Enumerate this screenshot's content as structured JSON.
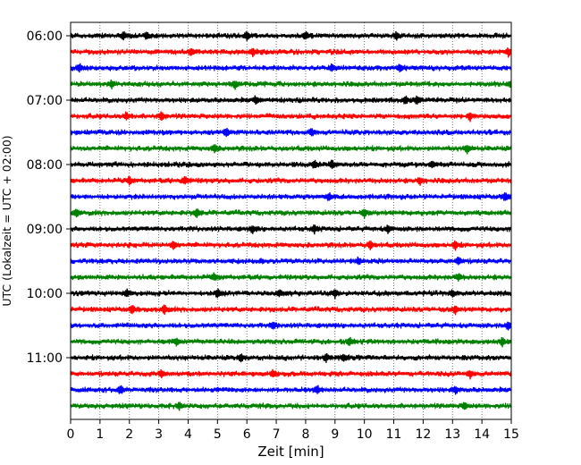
{
  "chart_data": {
    "type": "line",
    "title": "",
    "xlabel": "Zeit  [min]",
    "ylabel": "UTC (Lokalzeit = UTC + 02:00)",
    "xlim": [
      0,
      15
    ],
    "x_ticks": [
      "0",
      "1",
      "2",
      "3",
      "4",
      "5",
      "6",
      "7",
      "8",
      "9",
      "10",
      "11",
      "12",
      "13",
      "14",
      "15"
    ],
    "y_ticks": [
      "06:00",
      "07:00",
      "08:00",
      "09:00",
      "10:00",
      "11:00"
    ],
    "trace_interval_min": 15,
    "grid": "vertical-dotted",
    "colors": [
      "#000000",
      "#ff0000",
      "#0000ff",
      "#008000"
    ],
    "series": [
      {
        "name": "06:00",
        "color": "#000000",
        "events": [
          1.8,
          2.6,
          6.0,
          8.0,
          11.1
        ]
      },
      {
        "name": "06:15",
        "color": "#ff0000",
        "events": [
          4.1,
          6.2,
          14.9
        ]
      },
      {
        "name": "06:30",
        "color": "#0000ff",
        "events": [
          0.3,
          8.9,
          11.2
        ]
      },
      {
        "name": "06:45",
        "color": "#008000",
        "events": [
          1.4,
          5.6,
          15.0
        ]
      },
      {
        "name": "07:00",
        "color": "#000000",
        "events": [
          6.3,
          11.4,
          11.8
        ]
      },
      {
        "name": "07:15",
        "color": "#ff0000",
        "events": [
          1.9,
          3.1,
          13.6
        ]
      },
      {
        "name": "07:30",
        "color": "#0000ff",
        "events": [
          5.3,
          8.2
        ]
      },
      {
        "name": "07:45",
        "color": "#008000",
        "events": [
          4.9,
          13.5
        ]
      },
      {
        "name": "08:00",
        "color": "#000000",
        "events": [
          8.3,
          8.9,
          12.3
        ]
      },
      {
        "name": "08:15",
        "color": "#ff0000",
        "events": [
          2.0,
          3.9,
          11.9
        ]
      },
      {
        "name": "08:30",
        "color": "#0000ff",
        "events": [
          8.8,
          14.8
        ]
      },
      {
        "name": "08:45",
        "color": "#008000",
        "events": [
          0.2,
          4.3,
          10.0
        ]
      },
      {
        "name": "09:00",
        "color": "#000000",
        "events": [
          6.2,
          8.3,
          10.8
        ]
      },
      {
        "name": "09:15",
        "color": "#ff0000",
        "events": [
          3.5,
          10.2,
          13.1
        ]
      },
      {
        "name": "09:30",
        "color": "#0000ff",
        "events": [
          9.8,
          13.2
        ]
      },
      {
        "name": "09:45",
        "color": "#008000",
        "events": [
          4.9,
          13.2
        ]
      },
      {
        "name": "10:00",
        "color": "#000000",
        "events": [
          1.9,
          5.0,
          7.1,
          9.0,
          13.0
        ]
      },
      {
        "name": "10:15",
        "color": "#ff0000",
        "events": [
          2.1,
          3.2,
          13.1
        ]
      },
      {
        "name": "10:30",
        "color": "#0000ff",
        "events": [
          6.9,
          14.9
        ]
      },
      {
        "name": "10:45",
        "color": "#008000",
        "events": [
          3.6,
          9.5,
          14.7
        ]
      },
      {
        "name": "11:00",
        "color": "#000000",
        "events": [
          5.8,
          8.7,
          9.3
        ]
      },
      {
        "name": "11:15",
        "color": "#ff0000",
        "events": [
          3.1,
          6.9,
          13.6
        ]
      },
      {
        "name": "11:30",
        "color": "#0000ff",
        "events": [
          1.7,
          8.4,
          13.1
        ]
      },
      {
        "name": "11:45",
        "color": "#008000",
        "events": [
          3.7,
          13.4
        ]
      }
    ]
  }
}
